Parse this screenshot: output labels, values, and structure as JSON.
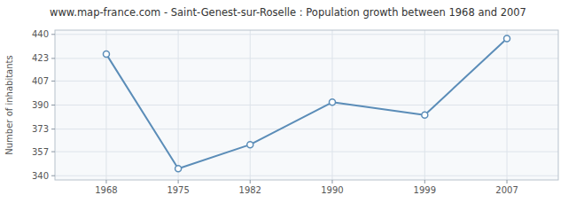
{
  "chart_data": {
    "type": "line",
    "title": "www.map-france.com - Saint-Genest-sur-Roselle : Population growth between 1968 and 2007",
    "ylabel": "Number of inhabitants",
    "x": [
      1968,
      1975,
      1982,
      1990,
      1999,
      2007
    ],
    "values": [
      426,
      345,
      362,
      392,
      383,
      437
    ],
    "xlim": [
      1963,
      2012
    ],
    "ylim": [
      337,
      443
    ],
    "xticks": [
      1968,
      1975,
      1982,
      1990,
      1999,
      2007
    ],
    "yticks": [
      340,
      357,
      373,
      390,
      407,
      423,
      440
    ],
    "color": "#5b8db8",
    "marker": "circle",
    "grid": true
  }
}
